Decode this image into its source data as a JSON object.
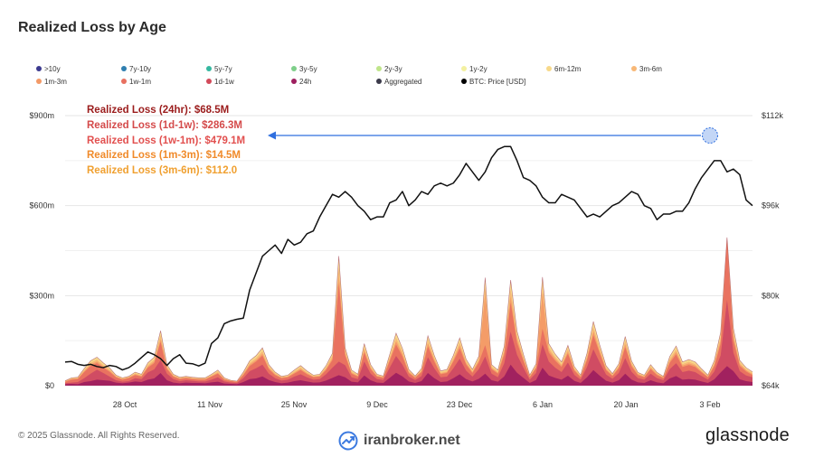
{
  "header": {
    "title": "Realized Loss by Age"
  },
  "legend": [
    {
      "label": ">10y",
      "color": "#3c3a8f"
    },
    {
      "label": "7y-10y",
      "color": "#2f7fb0"
    },
    {
      "label": "5y-7y",
      "color": "#35b8a0"
    },
    {
      "label": "3y-5y",
      "color": "#7fcf8a"
    },
    {
      "label": "2y-3y",
      "color": "#bfe58a"
    },
    {
      "label": "1y-2y",
      "color": "#f3f0a0"
    },
    {
      "label": "6m-12m",
      "color": "#f7d98a"
    },
    {
      "label": "3m-6m",
      "color": "#f8b877"
    },
    {
      "label": "1m-3m",
      "color": "#f39a67"
    },
    {
      "label": "1w-1m",
      "color": "#e87060"
    },
    {
      "label": "1d-1w",
      "color": "#d24a5a"
    },
    {
      "label": "24h",
      "color": "#9e1f5f"
    },
    {
      "label": "Aggregated",
      "color": "#3b3a4a"
    },
    {
      "label": "BTC: Price [USD]",
      "color": "#000000"
    }
  ],
  "annotations": [
    {
      "text": "Realized Loss (24hr): $68.5M",
      "color": "#9b1c1c"
    },
    {
      "text": "Realized Loss (1d-1w): $286.3M",
      "color": "#d44a4a"
    },
    {
      "text": "Realized Loss (1w-1m): $479.1M",
      "color": "#e2504f"
    },
    {
      "text": "Realized Loss (1m-3m): $14.5M",
      "color": "#f08a2a"
    },
    {
      "text": "Realized Loss (3m-6m): $112.0",
      "color": "#f0a030"
    }
  ],
  "footer": {
    "copyright": "© 2025 Glassnode. All Rights Reserved.",
    "watermark": "iranbroker.net",
    "brand": "glassnode"
  },
  "chart_data": {
    "type": "area",
    "x_ticks": [
      "28 Oct",
      "11 Nov",
      "25 Nov",
      "9 Dec",
      "23 Dec",
      "6 Jan",
      "20 Jan",
      "3 Feb"
    ],
    "y_left": {
      "ticks": [
        "$0",
        "$300m",
        "$600m",
        "$900m"
      ],
      "range": [
        0,
        900
      ]
    },
    "y_right": {
      "ticks": [
        "$64k",
        "$80k",
        "$96k",
        "$112k"
      ],
      "range": [
        64,
        112
      ]
    },
    "grid": true,
    "days": 109,
    "btc_price_k": [
      68.2,
      68.3,
      67.8,
      67.6,
      67.8,
      67.4,
      67.2,
      67.6,
      67.4,
      66.8,
      67.2,
      68.0,
      69.0,
      70.0,
      69.5,
      68.8,
      67.6,
      68.8,
      69.5,
      68.0,
      67.9,
      67.5,
      68.0,
      71.5,
      72.5,
      75.0,
      75.5,
      75.8,
      76.0,
      81.0,
      84.0,
      87.0,
      88.0,
      89.0,
      87.5,
      90.0,
      89.0,
      89.5,
      91.0,
      91.5,
      94.0,
      96.0,
      98.0,
      97.5,
      98.5,
      97.5,
      96.0,
      95.0,
      93.5,
      94.0,
      94.0,
      96.5,
      97.0,
      98.5,
      96.0,
      97.0,
      98.5,
      98.0,
      99.5,
      100.0,
      99.5,
      100.0,
      101.5,
      103.5,
      102.0,
      100.5,
      102.0,
      104.5,
      106.0,
      106.5,
      106.5,
      104.0,
      101.0,
      100.5,
      99.5,
      97.5,
      96.5,
      96.5,
      98.0,
      97.5,
      97.0,
      95.5,
      94.0,
      94.5,
      94.0,
      95.0,
      96.0,
      96.5,
      97.5,
      98.5,
      98.0,
      96.0,
      95.5,
      93.5,
      94.5,
      94.5,
      95.0,
      95.0,
      96.5,
      99.0,
      101.0,
      102.5,
      104.0,
      104.0,
      102.0,
      102.5,
      101.5,
      97.0,
      96.0
    ],
    "series": [
      {
        "name": "24h",
        "values": [
          5,
          6,
          5,
          12,
          15,
          20,
          18,
          16,
          10,
          8,
          10,
          14,
          12,
          20,
          24,
          42,
          18,
          10,
          8,
          10,
          9,
          9,
          8,
          11,
          13,
          7,
          6,
          5,
          12,
          22,
          24,
          31,
          19,
          12,
          8,
          10,
          15,
          18,
          14,
          10,
          11,
          17,
          26,
          35,
          28,
          13,
          11,
          34,
          18,
          10,
          9,
          26,
          43,
          31,
          14,
          9,
          15,
          42,
          25,
          12,
          14,
          25,
          38,
          22,
          14,
          23,
          40,
          18,
          13,
          31,
          70,
          43,
          26,
          9,
          19,
          60,
          34,
          26,
          20,
          33,
          16,
          9,
          28,
          52,
          33,
          16,
          10,
          18,
          40,
          20,
          11,
          9,
          18,
          11,
          8,
          24,
          32,
          20,
          22,
          20,
          14,
          9,
          21,
          44,
          65,
          48,
          21,
          15,
          12
        ]
      },
      {
        "name": "1d-1w",
        "values": [
          8,
          10,
          12,
          25,
          40,
          53,
          42,
          30,
          18,
          13,
          15,
          25,
          22,
          44,
          54,
          85,
          40,
          22,
          15,
          18,
          16,
          14,
          14,
          20,
          28,
          14,
          10,
          9,
          25,
          48,
          58,
          70,
          40,
          25,
          17,
          20,
          30,
          38,
          28,
          20,
          22,
          38,
          60,
          80,
          68,
          28,
          22,
          80,
          40,
          22,
          19,
          60,
          99,
          70,
          30,
          19,
          32,
          95,
          58,
          28,
          30,
          58,
          90,
          50,
          30,
          55,
          97,
          40,
          28,
          75,
          180,
          103,
          60,
          20,
          42,
          138,
          80,
          60,
          45,
          77,
          36,
          20,
          62,
          121,
          77,
          37,
          23,
          42,
          92,
          46,
          25,
          20,
          40,
          25,
          18,
          55,
          75,
          45,
          50,
          45,
          32,
          20,
          47,
          101,
          286,
          110,
          48,
          34,
          28
        ]
      },
      {
        "name": "1w-1m",
        "values": [
          12,
          20,
          22,
          45,
          65,
          75,
          60,
          46,
          28,
          20,
          25,
          35,
          30,
          60,
          75,
          146,
          55,
          30,
          22,
          25,
          22,
          20,
          20,
          30,
          40,
          20,
          15,
          12,
          35,
          65,
          80,
          100,
          55,
          35,
          25,
          28,
          40,
          52,
          38,
          28,
          30,
          52,
          85,
          341,
          100,
          40,
          30,
          110,
          55,
          30,
          26,
          82,
          137,
          97,
          42,
          26,
          45,
          130,
          80,
          38,
          42,
          80,
          124,
          70,
          42,
          77,
          135,
          55,
          40,
          104,
          277,
          143,
          83,
          28,
          58,
          190,
          110,
          83,
          62,
          106,
          50,
          28,
          85,
          168,
          107,
          51,
          32,
          58,
          128,
          64,
          35,
          28,
          55,
          35,
          25,
          76,
          104,
          62,
          69,
          62,
          44,
          28,
          65,
          140,
          480,
          150,
          66,
          47,
          35
        ]
      },
      {
        "name": "1m-3m",
        "values": [
          14,
          22,
          24,
          48,
          70,
          80,
          64,
          50,
          30,
          22,
          27,
          38,
          32,
          64,
          80,
          155,
          59,
          32,
          24,
          27,
          24,
          22,
          22,
          32,
          43,
          22,
          16,
          13,
          38,
          70,
          85,
          106,
          59,
          38,
          27,
          30,
          43,
          56,
          41,
          30,
          32,
          56,
          91,
          365,
          107,
          43,
          32,
          118,
          59,
          32,
          28,
          88,
          148,
          105,
          45,
          28,
          48,
          140,
          86,
          41,
          45,
          86,
          134,
          75,
          45,
          83,
          305,
          59,
          43,
          112,
          298,
          154,
          89,
          30,
          62,
          307,
          118,
          89,
          67,
          114,
          54,
          30,
          91,
          181,
          115,
          55,
          34,
          62,
          138,
          69,
          38,
          30,
          59,
          38,
          27,
          82,
          112,
          67,
          74,
          67,
          47,
          30,
          70,
          151,
          494,
          162,
          71,
          51,
          38
        ]
      },
      {
        "name": "3m-6m",
        "values": [
          15,
          24,
          26,
          52,
          76,
          87,
          69,
          54,
          32,
          24,
          29,
          41,
          35,
          69,
          87,
          168,
          64,
          35,
          26,
          29,
          26,
          24,
          24,
          35,
          47,
          24,
          17,
          14,
          41,
          76,
          92,
          115,
          64,
          41,
          29,
          32,
          47,
          61,
          44,
          32,
          35,
          61,
          99,
          395,
          116,
          47,
          35,
          128,
          64,
          35,
          30,
          95,
          160,
          114,
          49,
          30,
          52,
          152,
          93,
          44,
          49,
          93,
          145,
          81,
          49,
          90,
          330,
          64,
          47,
          121,
          322,
          167,
          96,
          32,
          67,
          332,
          128,
          96,
          72,
          123,
          58,
          32,
          99,
          196,
          124,
          60,
          37,
          67,
          150,
          75,
          41,
          32,
          64,
          41,
          29,
          89,
          121,
          72,
          80,
          72,
          51,
          32,
          76,
          163,
          494,
          175,
          77,
          55,
          42
        ]
      },
      {
        "name": "6m-12m",
        "values": [
          16,
          26,
          28,
          56,
          82,
          94,
          75,
          58,
          35,
          26,
          31,
          44,
          38,
          75,
          94,
          181,
          69,
          38,
          28,
          31,
          28,
          26,
          26,
          38,
          51,
          26,
          18,
          15,
          44,
          82,
          99,
          124,
          69,
          44,
          31,
          35,
          51,
          66,
          48,
          35,
          38,
          66,
          107,
          427,
          125,
          51,
          38,
          138,
          69,
          38,
          32,
          103,
          173,
          123,
          53,
          32,
          56,
          164,
          100,
          48,
          53,
          100,
          157,
          87,
          53,
          97,
          356,
          69,
          51,
          131,
          348,
          180,
          104,
          35,
          72,
          358,
          138,
          104,
          78,
          133,
          63,
          35,
          107,
          212,
          134,
          65,
          40,
          72,
          162,
          81,
          44,
          35,
          69,
          44,
          31,
          96,
          131,
          78,
          86,
          78,
          55,
          35,
          82,
          176,
          494,
          189,
          83,
          59,
          45
        ]
      },
      {
        "name": "1y-2y",
        "values": [
          16,
          26,
          28,
          57,
          83,
          95,
          76,
          59,
          35,
          26,
          31,
          45,
          38,
          76,
          95,
          183,
          70,
          38,
          28,
          31,
          28,
          26,
          26,
          38,
          52,
          26,
          18,
          15,
          45,
          83,
          100,
          126,
          70,
          45,
          31,
          35,
          52,
          67,
          49,
          35,
          38,
          67,
          108,
          432,
          126,
          52,
          38,
          140,
          70,
          38,
          32,
          104,
          175,
          124,
          54,
          32,
          57,
          166,
          101,
          49,
          54,
          101,
          159,
          88,
          54,
          98,
          360,
          70,
          52,
          132,
          352,
          182,
          105,
          35,
          73,
          362,
          140,
          105,
          79,
          134,
          64,
          35,
          108,
          214,
          135,
          66,
          40,
          73,
          164,
          82,
          44,
          35,
          70,
          44,
          31,
          97,
          132,
          79,
          87,
          79,
          56,
          35,
          83,
          178,
          494,
          191,
          84,
          60,
          46
        ]
      }
    ]
  }
}
